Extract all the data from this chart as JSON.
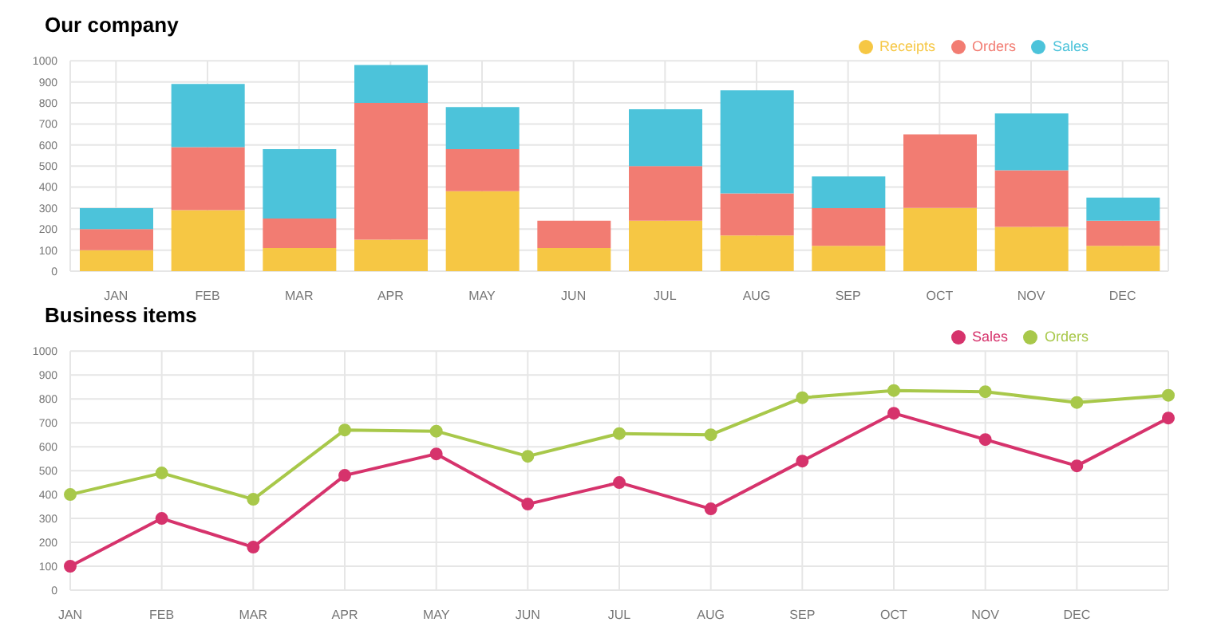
{
  "chart_data": [
    {
      "type": "bar",
      "title": "Our company",
      "stacked": true,
      "categories": [
        "JAN",
        "FEB",
        "MAR",
        "APR",
        "MAY",
        "JUN",
        "JUL",
        "AUG",
        "SEP",
        "OCT",
        "NOV",
        "DEC"
      ],
      "series": [
        {
          "name": "Receipts",
          "color": "#f6c744",
          "values": [
            100,
            290,
            110,
            150,
            380,
            110,
            240,
            170,
            120,
            300,
            210,
            120
          ]
        },
        {
          "name": "Orders",
          "color": "#f27c72",
          "values": [
            100,
            300,
            140,
            650,
            200,
            130,
            260,
            200,
            180,
            350,
            270,
            120
          ]
        },
        {
          "name": "Sales",
          "color": "#4cc3da",
          "values": [
            100,
            300,
            330,
            180,
            200,
            null,
            270,
            490,
            150,
            null,
            270,
            110
          ]
        }
      ],
      "ylim": [
        0,
        1000
      ],
      "yticks": [
        0,
        100,
        200,
        300,
        400,
        500,
        600,
        700,
        800,
        900,
        1000
      ],
      "grid": true,
      "legend": "top right"
    },
    {
      "type": "line",
      "title": "Business items",
      "categories": [
        "JAN",
        "FEB",
        "MAR",
        "APR",
        "MAY",
        "JUN",
        "JUL",
        "AUG",
        "SEP",
        "OCT",
        "NOV",
        "DEC",
        null
      ],
      "series": [
        {
          "name": "Sales",
          "color": "#d6336c",
          "values": [
            100,
            300,
            180,
            480,
            570,
            360,
            450,
            340,
            540,
            740,
            630,
            520,
            720
          ]
        },
        {
          "name": "Orders",
          "color": "#a8c84a",
          "values": [
            400,
            490,
            380,
            670,
            665,
            560,
            655,
            650,
            805,
            835,
            830,
            785,
            815
          ]
        }
      ],
      "ylim": [
        0,
        1000
      ],
      "yticks": [
        0,
        100,
        200,
        300,
        400,
        500,
        600,
        700,
        800,
        900,
        1000
      ],
      "grid": true,
      "legend": "top right",
      "marker": "circle"
    }
  ]
}
